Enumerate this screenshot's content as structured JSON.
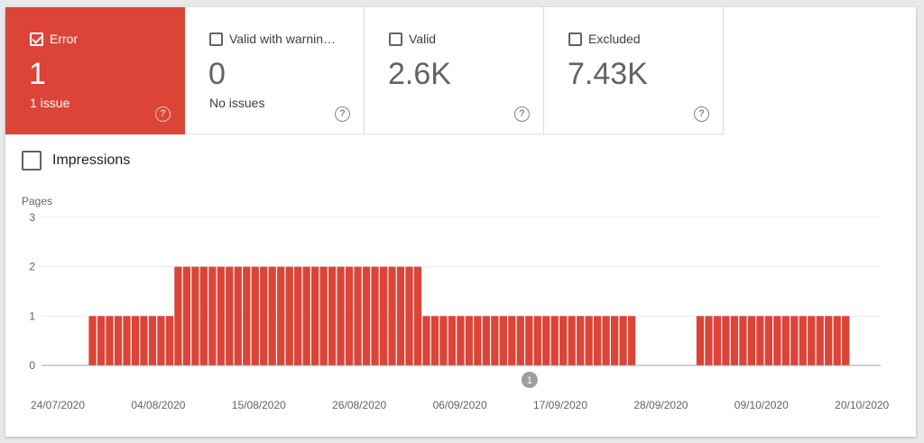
{
  "tiles": [
    {
      "label": "Error",
      "value": "1",
      "sub": "1 issue",
      "active": true
    },
    {
      "label": "Valid with warnin…",
      "value": "0",
      "sub": "No issues",
      "active": false
    },
    {
      "label": "Valid",
      "value": "2.6K",
      "sub": "",
      "active": false
    },
    {
      "label": "Excluded",
      "value": "7.43K",
      "sub": "",
      "active": false
    }
  ],
  "help_glyph": "?",
  "impressions": {
    "label": "Impressions"
  },
  "colors": {
    "error": "#db4437",
    "help": "#80868b"
  },
  "chart_data": {
    "type": "bar",
    "ylabel": "Pages",
    "ylim": [
      0,
      3
    ],
    "yticks": [
      "0",
      "1",
      "2",
      "3"
    ],
    "xtick_labels": [
      "24/07/2020",
      "04/08/2020",
      "15/08/2020",
      "26/08/2020",
      "06/09/2020",
      "17/09/2020",
      "28/09/2020",
      "09/10/2020",
      "20/10/2020"
    ],
    "series": [
      {
        "values": [
          0,
          0,
          0,
          0,
          0,
          1,
          1,
          1,
          1,
          1,
          1,
          1,
          1,
          1,
          1,
          2,
          2,
          2,
          2,
          2,
          2,
          2,
          2,
          2,
          2,
          2,
          2,
          2,
          2,
          2,
          2,
          2,
          2,
          2,
          2,
          2,
          2,
          2,
          2,
          2,
          2,
          2,
          2,
          2,
          1,
          1,
          1,
          1,
          1,
          1,
          1,
          1,
          1,
          1,
          1,
          1,
          1,
          1,
          1,
          1,
          1,
          1,
          1,
          1,
          1,
          1,
          1,
          1,
          1,
          0,
          0,
          0,
          0,
          0,
          0,
          0,
          1,
          1,
          1,
          1,
          1,
          1,
          1,
          1,
          1,
          1,
          1,
          1,
          1,
          1,
          1,
          1,
          1,
          1,
          0,
          0,
          0
        ]
      }
    ],
    "annotation": {
      "label": "1",
      "date_index": 56
    }
  }
}
